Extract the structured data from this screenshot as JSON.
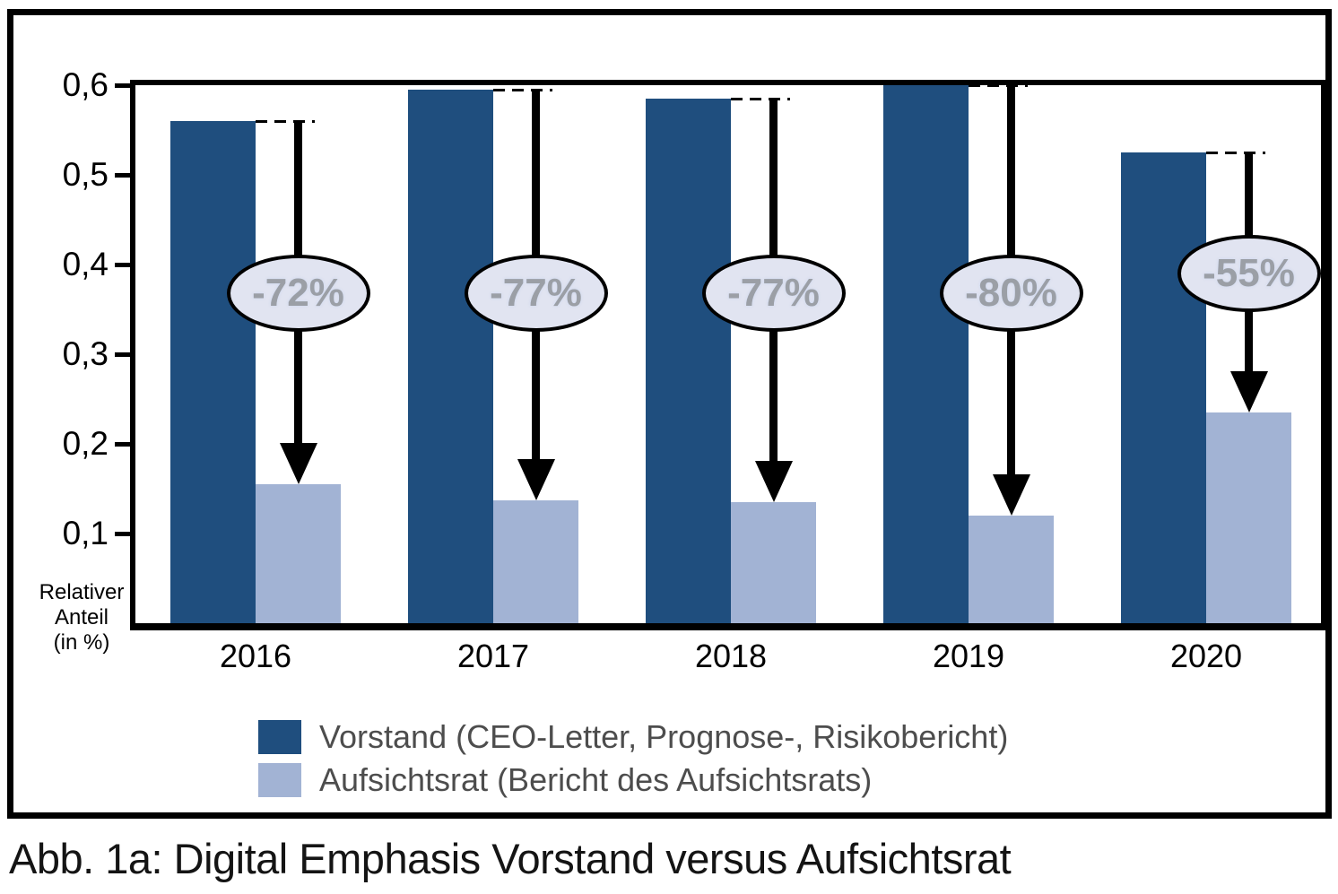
{
  "figure": {
    "caption": "Abb. 1a: Digital Emphasis Vorstand versus Aufsichtsrat",
    "y_axis_title_lines": [
      "Relativer",
      "Anteil",
      "(in %)"
    ],
    "colors": {
      "vorstand_bar": "#1F4E7E",
      "aufsichtsrat_bar": "#A2B3D4",
      "ellipse_fill": "#E1E4F1",
      "ellipse_text": "#9B9FA6",
      "axis": "#000000",
      "legend_text": "#4D4D4D"
    },
    "legend": {
      "items": [
        {
          "label": "Vorstand (CEO-Letter, Prognose-, Risikobericht)",
          "color": "#1F4E7E"
        },
        {
          "label": "Aufsichtsrat (Bericht des Aufsichtsrats)",
          "color": "#A2B3D4"
        }
      ]
    }
  },
  "chart_data": {
    "type": "bar",
    "title": "",
    "xlabel": "",
    "ylabel": "Relativer Anteil (in %)",
    "ylim": [
      0,
      0.6
    ],
    "grid": false,
    "legend_position": "bottom",
    "categories": [
      "2016",
      "2017",
      "2018",
      "2019",
      "2020"
    ],
    "series": [
      {
        "name": "Vorstand (CEO-Letter, Prognose-, Risikobericht)",
        "color": "#1F4E7E",
        "values": [
          0.56,
          0.595,
          0.585,
          0.6,
          0.525
        ]
      },
      {
        "name": "Aufsichtsrat (Bericht des Aufsichtsrats)",
        "color": "#A2B3D4",
        "values": [
          0.155,
          0.137,
          0.135,
          0.12,
          0.235
        ]
      }
    ],
    "annotations": [
      {
        "category": "2016",
        "label": "-72%"
      },
      {
        "category": "2017",
        "label": "-77%"
      },
      {
        "category": "2018",
        "label": "-77%"
      },
      {
        "category": "2019",
        "label": "-80%"
      },
      {
        "category": "2020",
        "label": "-55%"
      }
    ],
    "y_ticks": [
      {
        "value": 0.1,
        "label": "0,1"
      },
      {
        "value": 0.2,
        "label": "0,2"
      },
      {
        "value": 0.3,
        "label": "0,3"
      },
      {
        "value": 0.4,
        "label": "0,4"
      },
      {
        "value": 0.5,
        "label": "0,5"
      },
      {
        "value": 0.6,
        "label": "0,6"
      }
    ]
  }
}
